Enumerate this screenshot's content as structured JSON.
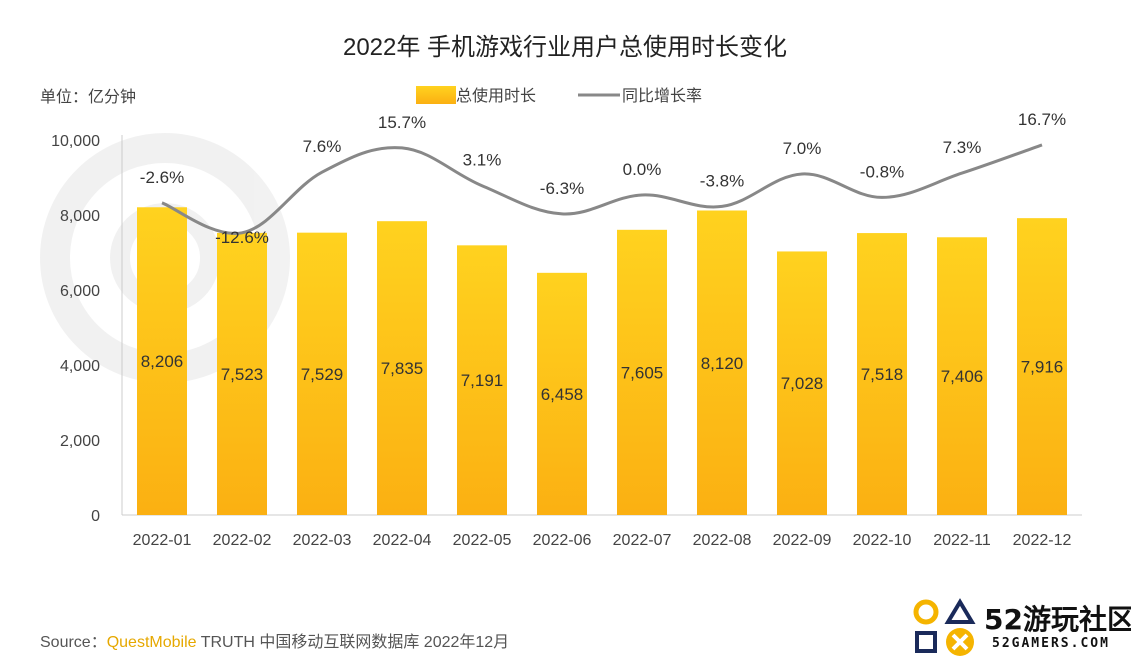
{
  "chart_data": {
    "type": "bar",
    "title": "2022年 手机游戏行业用户总使用时长变化",
    "unit_label": "单位：亿分钟",
    "categories": [
      "2022-01",
      "2022-02",
      "2022-03",
      "2022-04",
      "2022-05",
      "2022-06",
      "2022-07",
      "2022-08",
      "2022-09",
      "2022-10",
      "2022-11",
      "2022-12"
    ],
    "series": [
      {
        "name": "总使用时长",
        "kind": "bar",
        "values": [
          8206,
          7523,
          7529,
          7835,
          7191,
          6458,
          7605,
          8120,
          7028,
          7518,
          7406,
          7916
        ]
      },
      {
        "name": "同比增长率",
        "kind": "line",
        "values": [
          -2.6,
          -12.6,
          7.6,
          15.7,
          3.1,
          -6.3,
          0.0,
          -3.8,
          7.0,
          -0.8,
          7.3,
          16.7
        ],
        "labels": [
          "-2.6%",
          "-12.6%",
          "7.6%",
          "15.7%",
          "3.1%",
          "-6.3%",
          "0.0%",
          "-3.8%",
          "7.0%",
          "-0.8%",
          "7.3%",
          "16.7%"
        ]
      }
    ],
    "bar_value_labels": [
      "8,206",
      "7,523",
      "7,529",
      "7,835",
      "7,191",
      "6,458",
      "7,605",
      "8,120",
      "7,028",
      "7,518",
      "7,406",
      "7,916"
    ],
    "yticks": [
      "0",
      "2,000",
      "4,000",
      "6,000",
      "8,000",
      "10,000"
    ],
    "ytick_values": [
      0,
      2000,
      4000,
      6000,
      8000,
      10000
    ],
    "ylim": [
      0,
      10000
    ],
    "legend": [
      {
        "label": "总使用时长"
      },
      {
        "label": "同比增长率"
      }
    ],
    "legend_position": "top-center",
    "colors": {
      "bar_top": "#ffd21f",
      "bar_bottom": "#fbb012",
      "line": "#888888",
      "axis": "#cccccc"
    }
  },
  "footer": {
    "source_prefix": "Source：",
    "brand": "QuestMobile",
    "rest": " TRUTH 中国移动互联网数据库 2022年12月"
  },
  "logo": {
    "name": "52游玩社区",
    "domain": "52GAMERS.COM"
  }
}
